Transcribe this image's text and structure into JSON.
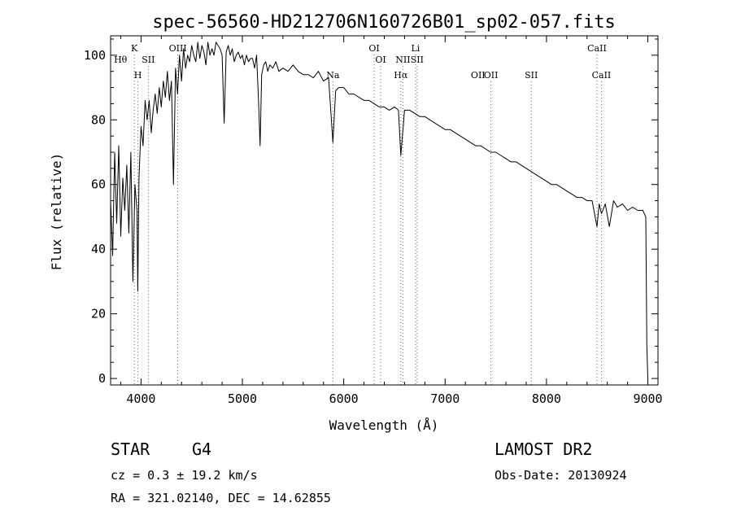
{
  "chart_data": {
    "type": "line",
    "title": "spec-56560-HD212706N160726B01_sp02-057.fits",
    "xlabel": "Wavelength (Å)",
    "ylabel": "Flux (relative)",
    "xlim": [
      3700,
      9100
    ],
    "ylim": [
      -2,
      106
    ],
    "xticks": [
      4000,
      5000,
      6000,
      7000,
      8000,
      9000
    ],
    "yticks": [
      0,
      20,
      40,
      60,
      80,
      100
    ],
    "grid": false,
    "series": [
      {
        "x": [
          3700,
          3720,
          3740,
          3760,
          3780,
          3800,
          3820,
          3840,
          3860,
          3880,
          3900,
          3920,
          3940,
          3960,
          3968,
          3980,
          4000,
          4020,
          4040,
          4060,
          4080,
          4101,
          4120,
          4140,
          4160,
          4180,
          4200,
          4220,
          4240,
          4260,
          4280,
          4300,
          4320,
          4340,
          4360,
          4380,
          4400,
          4420,
          4440,
          4460,
          4480,
          4500,
          4520,
          4540,
          4560,
          4580,
          4600,
          4620,
          4640,
          4660,
          4680,
          4700,
          4720,
          4740,
          4760,
          4780,
          4800,
          4820,
          4840,
          4860,
          4880,
          4900,
          4920,
          4940,
          4960,
          4980,
          5000,
          5020,
          5040,
          5060,
          5080,
          5100,
          5120,
          5140,
          5160,
          5175,
          5190,
          5210,
          5230,
          5250,
          5270,
          5300,
          5330,
          5360,
          5400,
          5450,
          5500,
          5550,
          5600,
          5650,
          5700,
          5750,
          5800,
          5850,
          5893,
          5920,
          5950,
          6000,
          6050,
          6100,
          6150,
          6200,
          6250,
          6300,
          6350,
          6400,
          6450,
          6500,
          6540,
          6563,
          6600,
          6650,
          6700,
          6750,
          6800,
          6850,
          6900,
          6950,
          7000,
          7050,
          7100,
          7150,
          7200,
          7250,
          7300,
          7350,
          7400,
          7450,
          7500,
          7550,
          7600,
          7650,
          7700,
          7750,
          7800,
          7850,
          7900,
          7950,
          8000,
          8050,
          8100,
          8150,
          8200,
          8250,
          8300,
          8350,
          8400,
          8450,
          8498,
          8520,
          8542,
          8580,
          8620,
          8662,
          8700,
          8750,
          8800,
          8850,
          8900,
          8950,
          8980,
          8990,
          9000
        ],
        "y": [
          55,
          38,
          70,
          48,
          72,
          44,
          62,
          52,
          66,
          45,
          70,
          30,
          60,
          52,
          27,
          62,
          78,
          72,
          86,
          80,
          86,
          76,
          83,
          88,
          82,
          90,
          84,
          92,
          87,
          95,
          86,
          92,
          60,
          96,
          88,
          100,
          92,
          102,
          96,
          100,
          98,
          103,
          100,
          98,
          104,
          99,
          103,
          101,
          97,
          104,
          100,
          102,
          100,
          104,
          103,
          102,
          100,
          79,
          101,
          103,
          100,
          102,
          98,
          100,
          101,
          99,
          100,
          97,
          100,
          98,
          99,
          99,
          96,
          100,
          85,
          72,
          94,
          97,
          98,
          95,
          97,
          96,
          98,
          95,
          96,
          95,
          97,
          95,
          94,
          94,
          93,
          95,
          92,
          93,
          73,
          89,
          90,
          90,
          88,
          88,
          87,
          86,
          86,
          85,
          84,
          84,
          83,
          84,
          83,
          69,
          83,
          83,
          82,
          81,
          81,
          80,
          79,
          78,
          77,
          77,
          76,
          75,
          74,
          73,
          72,
          72,
          71,
          70,
          70,
          69,
          68,
          67,
          67,
          66,
          65,
          64,
          63,
          62,
          61,
          60,
          60,
          59,
          58,
          57,
          56,
          56,
          55,
          55,
          47,
          54,
          51,
          54,
          47,
          55,
          53,
          54,
          52,
          53,
          52,
          52,
          50,
          10,
          0
        ]
      }
    ],
    "line_labels": [
      {
        "text": "Hθ",
        "x": 3798,
        "dotted": false
      },
      {
        "text": "K",
        "x": 3934,
        "dotted": true
      },
      {
        "text": "H",
        "x": 3969,
        "dotted": true
      },
      {
        "text": "SII",
        "x": 4072,
        "dotted": true
      },
      {
        "text": "OIII",
        "x": 4363,
        "dotted": true
      },
      {
        "text": "Na",
        "x": 5893,
        "dotted": true
      },
      {
        "text": "OI",
        "x": 6300,
        "dotted": true
      },
      {
        "text": "OI",
        "x": 6364,
        "dotted": true
      },
      {
        "text": "Li",
        "x": 6708,
        "dotted": true
      },
      {
        "text": "Hα",
        "x": 6563,
        "dotted": true
      },
      {
        "text": "NII",
        "x": 6584,
        "dotted": true
      },
      {
        "text": "SII",
        "x": 6724,
        "dotted": true
      },
      {
        "text": "OII",
        "x": 7325,
        "dotted": false
      },
      {
        "text": "OII",
        "x": 7452,
        "dotted": true
      },
      {
        "text": "SII",
        "x": 7850,
        "dotted": true
      },
      {
        "text": "CaII",
        "x": 8498,
        "dotted": true
      },
      {
        "text": "CaII",
        "x": 8542,
        "dotted": true
      }
    ]
  },
  "info": {
    "object_type": "STAR",
    "subclass": "G4",
    "redshift_label": "cz = 0.3 ± 19.2 km/s",
    "coordinates": "RA = 321.02140, DEC =  14.62855",
    "survey": "LAMOST DR2",
    "obs_date": "Obs-Date: 20130924"
  }
}
